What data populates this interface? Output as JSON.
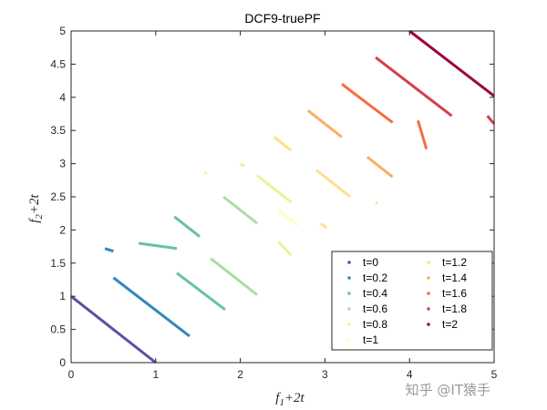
{
  "chart_data": {
    "type": "line",
    "title": "DCF9-truePF",
    "xlabel": "f1+2t",
    "ylabel": "f2+2t",
    "xlim": [
      0,
      5
    ],
    "ylim": [
      0,
      5
    ],
    "xticks": [
      "0",
      "1",
      "2",
      "3",
      "4",
      "5"
    ],
    "yticks": [
      "0",
      "0.5",
      "1",
      "1.5",
      "2",
      "2.5",
      "3",
      "3.5",
      "4",
      "4.5",
      "5"
    ],
    "grid": false,
    "legend_position": "bottom-right",
    "series": [
      {
        "name": "t=0",
        "color": "#5e4fa2",
        "segments": [
          [
            [
              0,
              1
            ],
            [
              1,
              0
            ]
          ]
        ]
      },
      {
        "name": "t=0.2",
        "color": "#3288bd",
        "segments": [
          [
            [
              0.4,
              1.72
            ],
            [
              0.5,
              1.68
            ]
          ],
          [
            [
              0.5,
              1.28
            ],
            [
              1.4,
              0.4
            ]
          ]
        ]
      },
      {
        "name": "t=0.4",
        "color": "#66c2a5",
        "segments": [
          [
            [
              0.8,
              1.8
            ],
            [
              1.25,
              1.72
            ]
          ],
          [
            [
              1.22,
              2.2
            ],
            [
              1.52,
              1.9
            ]
          ],
          [
            [
              1.25,
              1.35
            ],
            [
              1.82,
              0.8
            ]
          ]
        ]
      },
      {
        "name": "t=0.6",
        "color": "#abdda4",
        "segments": [
          [
            [
              1.65,
              1.57
            ],
            [
              2.2,
              1.02
            ]
          ],
          [
            [
              1.8,
              2.5
            ],
            [
              2.2,
              2.1
            ]
          ]
        ]
      },
      {
        "name": "t=0.8",
        "color": "#e6f598",
        "segments": [
          [
            [
              2.45,
              1.82
            ],
            [
              2.6,
              1.62
            ]
          ],
          [
            [
              2.2,
              2.82
            ],
            [
              2.6,
              2.42
            ]
          ],
          [
            [
              1.58,
              2.87
            ],
            [
              1.6,
              2.85
            ]
          ],
          [
            [
              2.0,
              3.0
            ],
            [
              2.05,
              2.96
            ]
          ]
        ]
      },
      {
        "name": "t=1",
        "color": "#ffffbf",
        "segments": [
          [
            [
              2.45,
              2.3
            ],
            [
              2.68,
              2.07
            ]
          ]
        ]
      },
      {
        "name": "t=1.2",
        "color": "#fee08b",
        "segments": [
          [
            [
              2.4,
              3.4
            ],
            [
              2.6,
              3.2
            ]
          ],
          [
            [
              2.95,
              2.1
            ],
            [
              3.02,
              2.03
            ]
          ],
          [
            [
              2.9,
              2.9
            ],
            [
              3.3,
              2.5
            ]
          ],
          [
            [
              3.6,
              2.42
            ],
            [
              3.62,
              2.4
            ]
          ]
        ]
      },
      {
        "name": "t=1.4",
        "color": "#fdae61",
        "segments": [
          [
            [
              2.8,
              3.8
            ],
            [
              3.2,
              3.4
            ]
          ],
          [
            [
              3.5,
              3.1
            ],
            [
              3.8,
              2.8
            ]
          ]
        ]
      },
      {
        "name": "t=1.6",
        "color": "#f46d43",
        "segments": [
          [
            [
              3.2,
              4.2
            ],
            [
              3.8,
              3.62
            ]
          ],
          [
            [
              4.1,
              3.65
            ],
            [
              4.2,
              3.22
            ]
          ]
        ]
      },
      {
        "name": "t=1.8",
        "color": "#d53e4f",
        "segments": [
          [
            [
              3.6,
              4.6
            ],
            [
              4.5,
              3.72
            ]
          ],
          [
            [
              4.92,
              3.72
            ],
            [
              5.0,
              3.6
            ]
          ]
        ]
      },
      {
        "name": "t=2",
        "color": "#9e0142",
        "segments": [
          [
            [
              4.0,
              5.0
            ],
            [
              5.0,
              4.02
            ]
          ]
        ]
      }
    ]
  },
  "watermark": "知乎 @IT猿手"
}
